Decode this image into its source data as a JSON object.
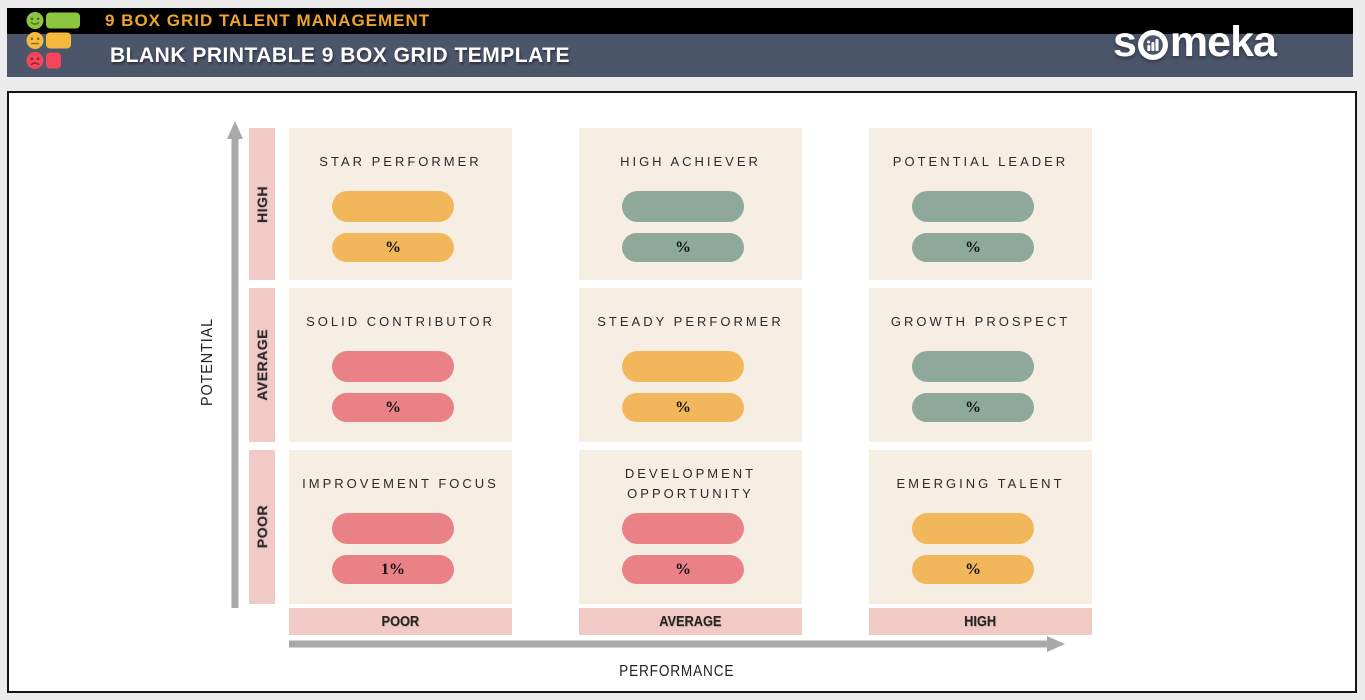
{
  "header": {
    "top_title": "9 BOX GRID TALENT MANAGEMENT",
    "subtitle": "BLANK PRINTABLE 9 BOX GRID TEMPLATE",
    "brand_pre": "s",
    "brand_post": "meka",
    "brand_full": "someka"
  },
  "matrix": {
    "y_axis": {
      "label": "POTENTIAL",
      "levels": [
        "HIGH",
        "AVERAGE",
        "POOR"
      ]
    },
    "x_axis": {
      "label": "PERFORMANCE",
      "levels": [
        "POOR",
        "AVERAGE",
        "HIGH"
      ]
    },
    "cells": [
      {
        "title": "STAR PERFORMER",
        "value": "%",
        "color": "#F2B75A"
      },
      {
        "title": "HIGH ACHIEVER",
        "value": "%",
        "color": "#8EA99B"
      },
      {
        "title": "POTENTIAL LEADER",
        "value": "%",
        "color": "#8EA99B"
      },
      {
        "title": "SOLID CONTRIBUTOR",
        "value": "%",
        "color": "#EA8186"
      },
      {
        "title": "STEADY PERFORMER",
        "value": "%",
        "color": "#F2B75A"
      },
      {
        "title": "GROWTH PROSPECT",
        "value": "%",
        "color": "#8EA99B"
      },
      {
        "title": "IMPROVEMENT FOCUS",
        "value": "1%",
        "color": "#EA8186"
      },
      {
        "title": "DEVELOPMENT OPPORTUNITY",
        "value": "%",
        "color": "#EA8186"
      },
      {
        "title": "EMERGING TALENT",
        "value": "%",
        "color": "#F2B75A"
      }
    ]
  },
  "colors": {
    "accent_orange_text": "#EEA32B",
    "slate_bar": "#4C566B",
    "cell_bg": "#F6EEE3",
    "axis_label_bg": "#F2CAC5",
    "arrow_gray": "#A9A9A9",
    "pill_orange": "#F2B75A",
    "pill_green": "#8EA99B",
    "pill_red": "#EA8186"
  }
}
